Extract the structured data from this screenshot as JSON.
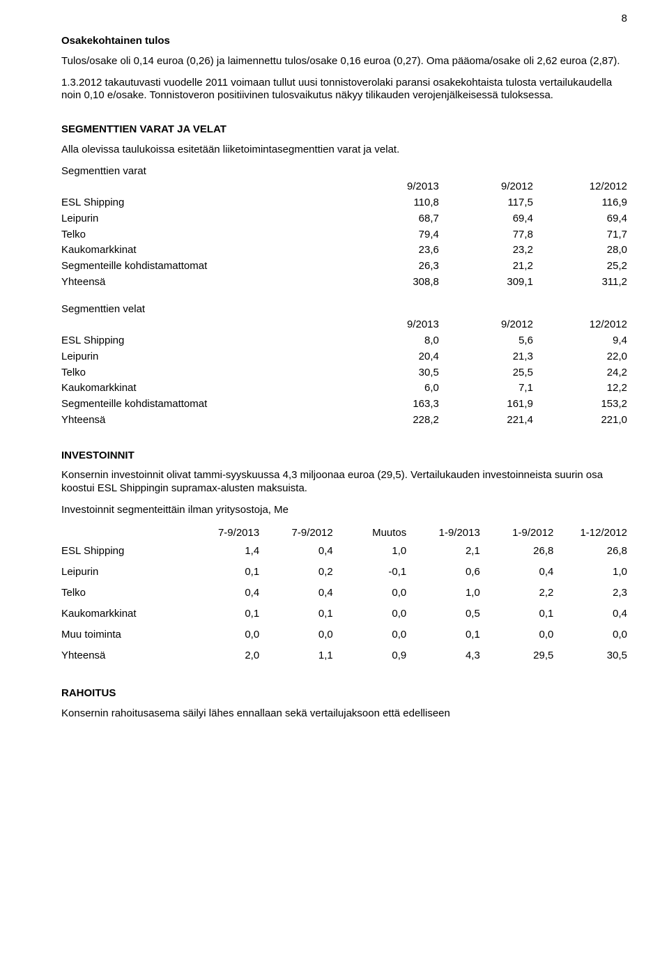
{
  "page_number": "8",
  "osakekohtainen": {
    "heading": "Osakekohtainen tulos",
    "para1": "Tulos/osake oli 0,14 euroa (0,26) ja laimennettu tulos/osake 0,16 euroa (0,27). Oma pääoma/osake oli 2,62 euroa (2,87).",
    "para2": "1.3.2012 takautuvasti vuodelle 2011 voimaan tullut uusi tonnistoverolaki paransi osakekohtaista tulosta vertailukaudella noin 0,10 e/osake. Tonnistoveron positiivinen tulosvaikutus näkyy tilikauden verojenjälkeisessä tuloksessa."
  },
  "segmenttien": {
    "heading": "SEGMENTTIEN VARAT JA VELAT",
    "intro": "Alla olevissa taulukoissa esitetään liiketoimintasegmenttien varat ja velat.",
    "varat": {
      "title": "Segmenttien varat",
      "cols": [
        "9/2013",
        "9/2012",
        "12/2012"
      ],
      "rows": [
        {
          "label": "ESL Shipping",
          "v": [
            "110,8",
            "117,5",
            "116,9"
          ]
        },
        {
          "label": "Leipurin",
          "v": [
            "68,7",
            "69,4",
            "69,4"
          ]
        },
        {
          "label": "Telko",
          "v": [
            "79,4",
            "77,8",
            "71,7"
          ]
        },
        {
          "label": "Kaukomarkkinat",
          "v": [
            "23,6",
            "23,2",
            "28,0"
          ]
        },
        {
          "label": "Segmenteille kohdistamattomat",
          "v": [
            "26,3",
            "21,2",
            "25,2"
          ]
        },
        {
          "label": "Yhteensä",
          "v": [
            "308,8",
            "309,1",
            "311,2"
          ]
        }
      ]
    },
    "velat": {
      "title": "Segmenttien velat",
      "cols": [
        "9/2013",
        "9/2012",
        "12/2012"
      ],
      "rows": [
        {
          "label": "ESL Shipping",
          "v": [
            "8,0",
            "5,6",
            "9,4"
          ]
        },
        {
          "label": "Leipurin",
          "v": [
            "20,4",
            "21,3",
            "22,0"
          ]
        },
        {
          "label": "Telko",
          "v": [
            "30,5",
            "25,5",
            "24,2"
          ]
        },
        {
          "label": "Kaukomarkkinat",
          "v": [
            "6,0",
            "7,1",
            "12,2"
          ]
        },
        {
          "label": "Segmenteille kohdistamattomat",
          "v": [
            "163,3",
            "161,9",
            "153,2"
          ]
        },
        {
          "label": "Yhteensä",
          "v": [
            "228,2",
            "221,4",
            "221,0"
          ]
        }
      ]
    }
  },
  "investoinnit": {
    "heading": "INVESTOINNIT",
    "para": "Konsernin investoinnit olivat tammi-syyskuussa 4,3 miljoonaa euroa (29,5). Vertailukauden investoinneista suurin osa koostui ESL Shippingin supramax-alusten maksuista.",
    "table_title": "Investoinnit segmenteittäin ilman yritysostoja, Me",
    "cols": [
      "7-9/2013",
      "7-9/2012",
      "Muutos",
      "1-9/2013",
      "1-9/2012",
      "1-12/2012"
    ],
    "rows": [
      {
        "label": "ESL Shipping",
        "v": [
          "1,4",
          "0,4",
          "1,0",
          "2,1",
          "26,8",
          "26,8"
        ]
      },
      {
        "label": "Leipurin",
        "v": [
          "0,1",
          "0,2",
          "-0,1",
          "0,6",
          "0,4",
          "1,0"
        ]
      },
      {
        "label": "Telko",
        "v": [
          "0,4",
          "0,4",
          "0,0",
          "1,0",
          "2,2",
          "2,3"
        ]
      },
      {
        "label": "Kaukomarkkinat",
        "v": [
          "0,1",
          "0,1",
          "0,0",
          "0,5",
          "0,1",
          "0,4"
        ]
      },
      {
        "label": "Muu toiminta",
        "v": [
          "0,0",
          "0,0",
          "0,0",
          "0,1",
          "0,0",
          "0,0"
        ]
      },
      {
        "label": "Yhteensä",
        "v": [
          "2,0",
          "1,1",
          "0,9",
          "4,3",
          "29,5",
          "30,5"
        ]
      }
    ]
  },
  "rahoitus": {
    "heading": "RAHOITUS",
    "para": "Konsernin rahoitusasema säilyi lähes ennallaan sekä vertailujaksoon että edelliseen"
  }
}
